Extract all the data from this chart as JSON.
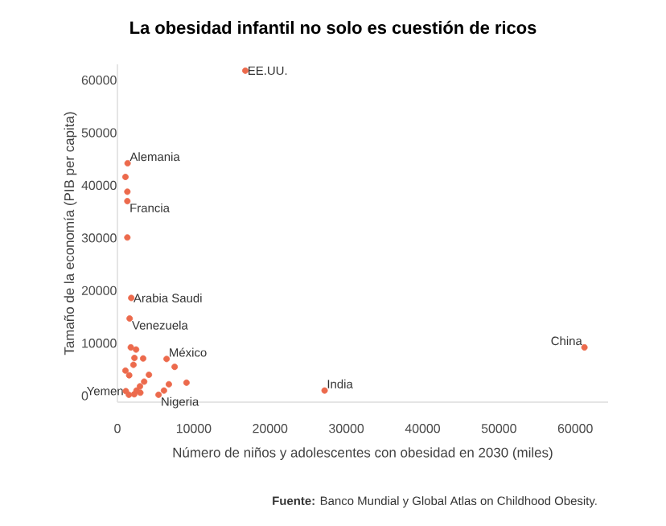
{
  "chart_data": {
    "type": "scatter",
    "title": "La obesidad infantil no solo es cuestión de ricos",
    "xlabel": "Número de niños y adolescentes con obesidad en 2030 (miles)",
    "ylabel": "Tamaño de la economía (PIB per capita)",
    "x": [
      16760,
      61200,
      27150,
      1330,
      1050,
      1300,
      1300,
      1300,
      1810,
      1600,
      1750,
      2440,
      2230,
      3370,
      2100,
      6440,
      7500,
      1050,
      1540,
      4130,
      9050,
      6740,
      3500,
      2950,
      6100,
      5390,
      1500,
      2200,
      2500,
      3000,
      1100
    ],
    "values": [
      61800,
      9200,
      1000,
      44200,
      41600,
      38800,
      37000,
      30100,
      18600,
      14700,
      9200,
      8800,
      7200,
      7100,
      5900,
      7000,
      5500,
      4800,
      3900,
      4000,
      2500,
      2200,
      2700,
      1800,
      1000,
      200,
      200,
      300,
      1000,
      600,
      900
    ],
    "color": "#ec6a4c",
    "marker": "circle",
    "xlim": [
      0,
      64300
    ],
    "ylim": [
      -1200,
      63000
    ],
    "xticks": [
      0,
      10000,
      20000,
      30000,
      40000,
      50000,
      60000
    ],
    "yticks": [
      0,
      10000,
      20000,
      30000,
      40000,
      50000,
      60000
    ],
    "annotations": [
      {
        "text": "EE.UU.",
        "x": 16760,
        "y": 61800
      },
      {
        "text": "Alemania",
        "x": 1330,
        "y": 44200
      },
      {
        "text": "Francia",
        "x": 1300,
        "y": 37000
      },
      {
        "text": "Arabia Saudi",
        "x": 1810,
        "y": 18600
      },
      {
        "text": "Venezuela",
        "x": 1600,
        "y": 14700
      },
      {
        "text": "México",
        "x": 6440,
        "y": 7000
      },
      {
        "text": "India",
        "x": 27150,
        "y": 1000
      },
      {
        "text": "Nigeria",
        "x": 5390,
        "y": 200
      },
      {
        "text": "Yemen",
        "x": 1100,
        "y": 900
      },
      {
        "text": "China",
        "x": 61200,
        "y": 9200
      },
      "**Fuente:** Banco Mundial y Global Atlas on Childhood Obesity."
    ]
  }
}
